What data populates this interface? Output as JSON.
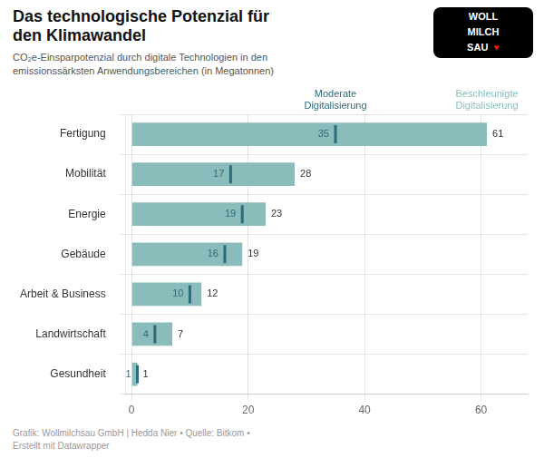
{
  "chart_data": {
    "type": "bar",
    "orientation": "horizontal",
    "title": "Das technologische Potenzial für\nden Klimawandel",
    "subtitle": "CO₂e-Einsparpotenzial durch digitale Technologien in den\nemissionssärksten Anwendungsbereichen (in Megatonnen)",
    "footer": "Grafik: Wollmilchsau GmbH | Hedda Nier • Quelle: Bitkom •\nErstellt mit Datawrapper",
    "annotations": [
      "WOLL",
      "MILCH",
      "SAU",
      "♥"
    ],
    "categories": [
      "Fertigung",
      "Mobilität",
      "Energie",
      "Gebäude",
      "Arbeit & Business",
      "Landwirtschaft",
      "Gesundheit"
    ],
    "series": [
      {
        "name": "Moderate\nDigitalisierung",
        "type": "scatter",
        "marker": "vline",
        "color": "#2a6b7c",
        "values": [
          35,
          17,
          19,
          16,
          10,
          4,
          1
        ]
      },
      {
        "name": "Beschleunigte\nDigitalisierung",
        "type": "bar",
        "color": "#8bbcbc",
        "values": [
          61,
          28,
          23,
          19,
          12,
          7,
          1
        ]
      }
    ],
    "xlim": [
      -1,
      68
    ],
    "xticks": [
      0,
      20,
      40,
      60
    ],
    "grid": true,
    "data_labels": true
  }
}
